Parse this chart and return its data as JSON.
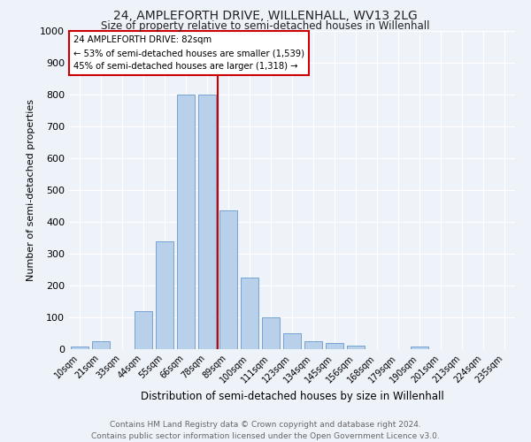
{
  "title": "24, AMPLEFORTH DRIVE, WILLENHALL, WV13 2LG",
  "subtitle": "Size of property relative to semi-detached houses in Willenhall",
  "xlabel": "Distribution of semi-detached houses by size in Willenhall",
  "ylabel": "Number of semi-detached properties",
  "categories": [
    "10sqm",
    "21sqm",
    "33sqm",
    "44sqm",
    "55sqm",
    "66sqm",
    "78sqm",
    "89sqm",
    "100sqm",
    "111sqm",
    "123sqm",
    "134sqm",
    "145sqm",
    "156sqm",
    "168sqm",
    "179sqm",
    "190sqm",
    "201sqm",
    "213sqm",
    "224sqm",
    "235sqm"
  ],
  "values": [
    8,
    25,
    0,
    120,
    340,
    800,
    800,
    435,
    225,
    100,
    50,
    25,
    20,
    12,
    0,
    0,
    8,
    0,
    0,
    0,
    0
  ],
  "bar_color": "#b8d0ea",
  "bar_edge_color": "#6699cc",
  "vline_x_index": 6.5,
  "vline_color": "#cc0000",
  "annotation_line1": "24 AMPLEFORTH DRIVE: 82sqm",
  "annotation_line2": "← 53% of semi-detached houses are smaller (1,539)",
  "annotation_line3": "45% of semi-detached houses are larger (1,318) →",
  "annotation_box_color": "#ffffff",
  "annotation_box_edge": "#cc0000",
  "ylim": [
    0,
    1000
  ],
  "yticks": [
    0,
    100,
    200,
    300,
    400,
    500,
    600,
    700,
    800,
    900,
    1000
  ],
  "background_color": "#eef2f9",
  "grid_color": "#ffffff",
  "title_fontsize": 10,
  "subtitle_fontsize": 8.5,
  "ylabel_fontsize": 8,
  "xlabel_fontsize": 8.5,
  "tick_fontsize": 7,
  "footer_line1": "Contains HM Land Registry data © Crown copyright and database right 2024.",
  "footer_line2": "Contains public sector information licensed under the Open Government Licence v3.0.",
  "footer_fontsize": 6.5,
  "footer_color": "#666666"
}
